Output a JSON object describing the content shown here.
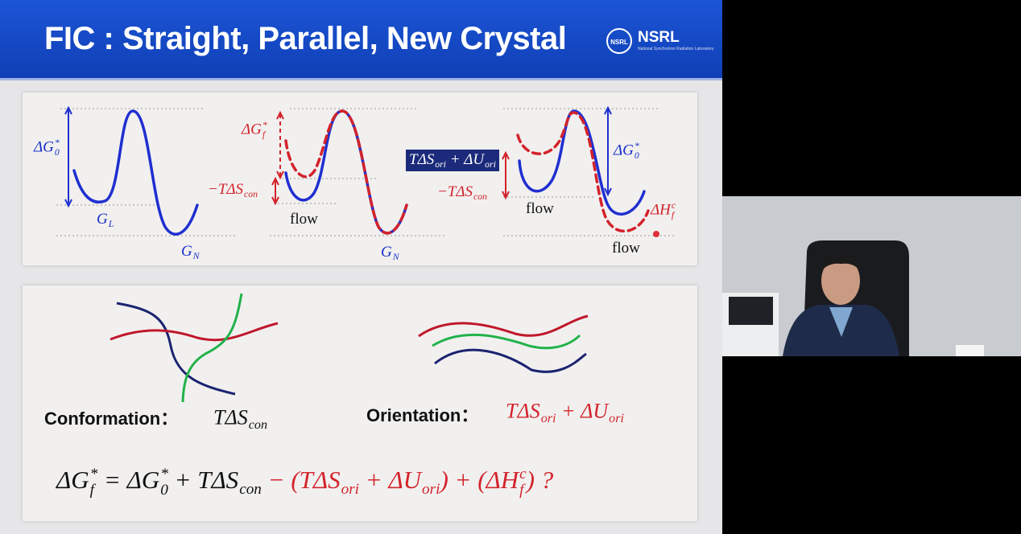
{
  "slide": {
    "title": "FIC : Straight, Parallel, New Crystal",
    "logo": {
      "badge": "NSRL",
      "name": "NSRL",
      "subtitle": "National Synchrotron Radiation Laboratory"
    },
    "energy_panel": {
      "l1": [
        {
          "t": "ΔG",
          "sub": "0",
          "sup": "*"
        }
      ],
      "l2": [
        {
          "t": "G",
          "sub": "L"
        }
      ],
      "l3": [
        {
          "t": "G",
          "sub": "N"
        }
      ],
      "l4": [
        {
          "t": "ΔG",
          "sub": "f",
          "sup": "*"
        }
      ],
      "l5": [
        {
          "t": "−TΔS",
          "sub": "con"
        }
      ],
      "l6": [
        {
          "t": "flow"
        }
      ],
      "l7": [
        {
          "t": "G",
          "sub": "N"
        }
      ],
      "l8": [
        {
          "t": "TΔS",
          "sub": "ori"
        },
        {
          "t": " + ΔU",
          "sub": "ori"
        }
      ],
      "l9": [
        {
          "t": "−TΔS",
          "sub": "con"
        }
      ],
      "l10": [
        {
          "t": "flow"
        }
      ],
      "l11": [
        {
          "t": "ΔG",
          "sub": "0",
          "sup": "*"
        }
      ],
      "l12": [
        {
          "t": "ΔH",
          "sub": "f",
          "sup": "c"
        }
      ],
      "l13": [
        {
          "t": "flow"
        }
      ]
    },
    "chain_panel": {
      "conf_label": [
        {
          "t": "Conformation："
        }
      ],
      "conf_term": [
        {
          "t": "TΔS",
          "sub": "con"
        }
      ],
      "ori_label": [
        {
          "t": "Orientation："
        }
      ],
      "ori_term": [
        {
          "t": "TΔS",
          "sub": "ori"
        },
        {
          "t": " + ΔU",
          "sub": "ori"
        }
      ],
      "eq_black": [
        {
          "t": "ΔG",
          "sub": "f",
          "sup": "*"
        },
        {
          "t": " = ΔG",
          "sub": "0",
          "sup": "*"
        },
        {
          "t": " + TΔS",
          "sub": "con"
        }
      ],
      "eq_red": [
        {
          "t": " − (TΔS",
          "sub": "ori"
        },
        {
          "t": " + ΔU",
          "sub": "ori"
        },
        {
          "t": ") + (ΔH",
          "sub": "f",
          "sup": "c"
        },
        {
          "t": ") ?"
        }
      ]
    }
  }
}
